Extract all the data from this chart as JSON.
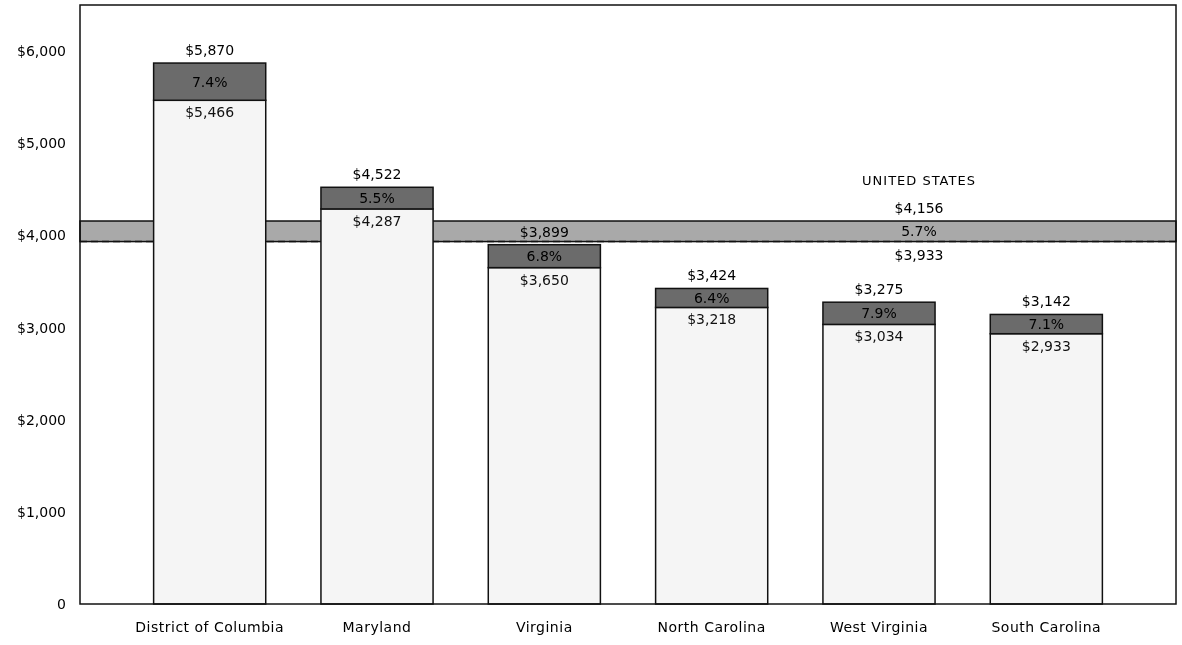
{
  "chart_data": {
    "type": "bar",
    "stacked": true,
    "categories": [
      "District of Columbia",
      "Maryland",
      "Virginia",
      "North Carolina",
      "West Virginia",
      "South Carolina"
    ],
    "series": [
      {
        "color": "#f5f5f5",
        "values": [
          5466,
          4287,
          3650,
          3218,
          3034,
          2933
        ],
        "value_labels": [
          "$5,466",
          "$4,287",
          "$3,650",
          "$3,218",
          "$3,034",
          "$2,933"
        ]
      },
      {
        "color": "#6b6b6b",
        "values": [
          404,
          235,
          249,
          206,
          241,
          209
        ]
      }
    ],
    "totals": [
      "$5,870",
      "$4,522",
      "$3,899",
      "$3,424",
      "$3,275",
      "$3,142"
    ],
    "ylim": [
      0,
      6500
    ],
    "yticks": [
      {
        "value": 0,
        "label": "0"
      },
      {
        "value": 1000,
        "label": "$1,000"
      },
      {
        "value": 2000,
        "label": "$2,000"
      },
      {
        "value": 3000,
        "label": "$3,000"
      },
      {
        "value": 4000,
        "label": "$4,000"
      },
      {
        "value": 5000,
        "label": "$5,000"
      },
      {
        "value": 6000,
        "label": "$6,000"
      }
    ],
    "bands": [
      {
        "axis": "y",
        "from": 3933,
        "to": 4156,
        "label": "5.7%",
        "color": "#a9a9a9"
      }
    ],
    "ref_lines": [
      {
        "axis": "y",
        "value": 3933,
        "label": "$3,933",
        "line_style": "dashed",
        "color": "#111111"
      }
    ],
    "annotations": [
      "UNITED STATES",
      {
        "text": "$4,156",
        "y": 4156
      },
      {
        "text": "7.4%",
        "x": "District of Columbia",
        "y": 5870
      },
      {
        "text": "5.5%",
        "x": "Maryland",
        "y": 4522
      },
      {
        "text": "6.8%",
        "x": "Virginia",
        "y": 3899
      },
      {
        "text": "6.4%",
        "x": "North Carolina",
        "y": 3424
      },
      {
        "text": "7.9%",
        "x": "West Virginia",
        "y": 3275
      },
      {
        "text": "7.1%",
        "x": "South Carolina",
        "y": 3142
      }
    ],
    "grid": false
  }
}
